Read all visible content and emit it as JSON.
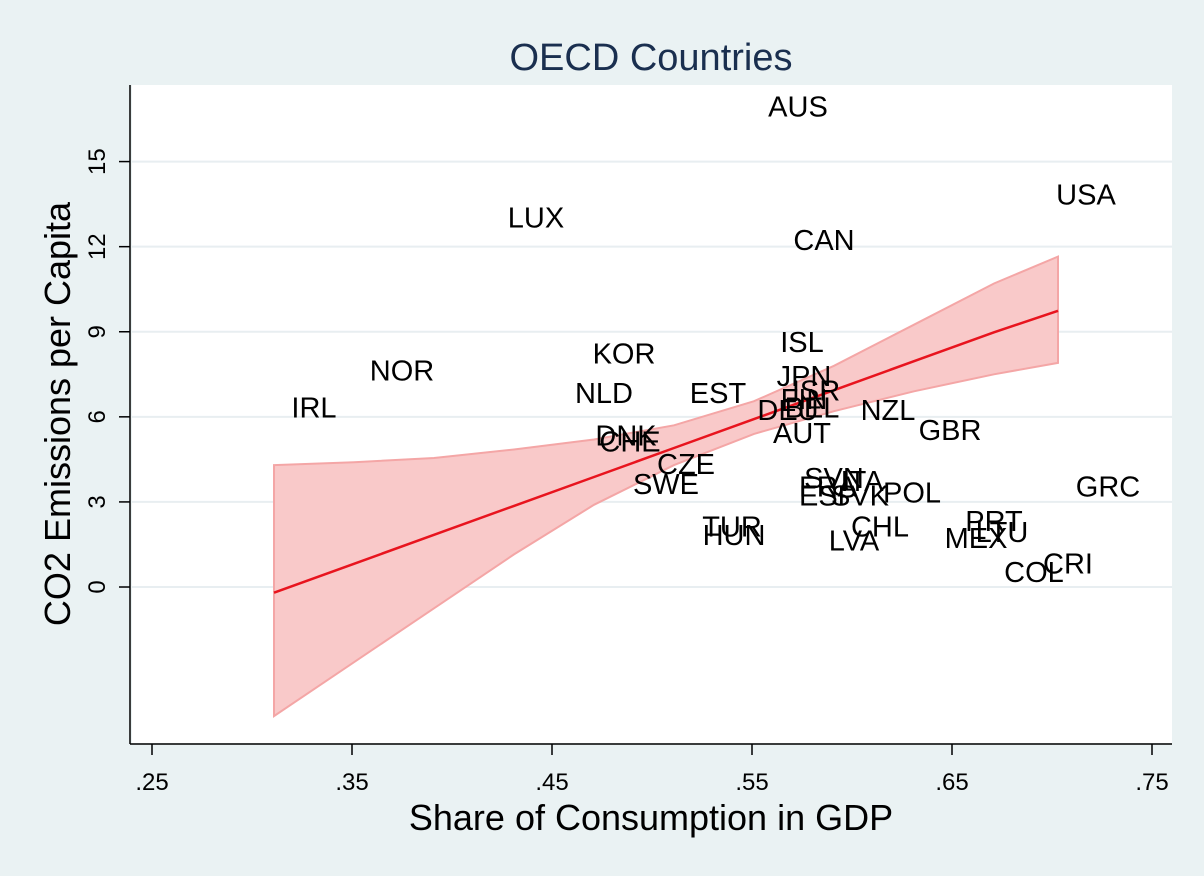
{
  "chart_data": {
    "type": "scatter",
    "title": "OECD Countries",
    "xlabel": "Share of Consumption in GDP",
    "ylabel": "CO2 Emissions per Capita",
    "xlim": [
      0.24,
      0.76
    ],
    "ylim": [
      -5.5,
      17.7
    ],
    "x_ticks": [
      {
        "value": 0.25,
        "label": ".25"
      },
      {
        "value": 0.35,
        "label": ".35"
      },
      {
        "value": 0.45,
        "label": ".45"
      },
      {
        "value": 0.55,
        "label": ".55"
      },
      {
        "value": 0.65,
        "label": ".65"
      },
      {
        "value": 0.75,
        "label": ".75"
      }
    ],
    "y_ticks": [
      {
        "value": 0,
        "label": "0"
      },
      {
        "value": 3,
        "label": "3"
      },
      {
        "value": 6,
        "label": "6"
      },
      {
        "value": 9,
        "label": "9"
      },
      {
        "value": 12,
        "label": "12"
      },
      {
        "value": 15,
        "label": "15"
      }
    ],
    "grid": true,
    "points": [
      {
        "label": "AUS",
        "x": 0.573,
        "y": 16.9
      },
      {
        "label": "USA",
        "x": 0.717,
        "y": 13.8
      },
      {
        "label": "LUX",
        "x": 0.442,
        "y": 13.0
      },
      {
        "label": "CAN",
        "x": 0.586,
        "y": 12.2
      },
      {
        "label": "ISL",
        "x": 0.575,
        "y": 8.6
      },
      {
        "label": "KOR",
        "x": 0.486,
        "y": 8.2
      },
      {
        "label": "NOR",
        "x": 0.375,
        "y": 7.6
      },
      {
        "label": "JPN",
        "x": 0.576,
        "y": 7.4
      },
      {
        "label": "NLD",
        "x": 0.476,
        "y": 6.8
      },
      {
        "label": "EST",
        "x": 0.533,
        "y": 6.8
      },
      {
        "label": "ISR",
        "x": 0.582,
        "y": 6.9
      },
      {
        "label": "BEL",
        "x": 0.58,
        "y": 6.3
      },
      {
        "label": "FIN",
        "x": 0.576,
        "y": 6.6
      },
      {
        "label": "DEU",
        "x": 0.568,
        "y": 6.2
      },
      {
        "label": "IRL",
        "x": 0.331,
        "y": 6.3
      },
      {
        "label": "NZL",
        "x": 0.618,
        "y": 6.2
      },
      {
        "label": "AUT",
        "x": 0.575,
        "y": 5.4
      },
      {
        "label": "GBR",
        "x": 0.649,
        "y": 5.5
      },
      {
        "label": "DNK",
        "x": 0.487,
        "y": 5.3
      },
      {
        "label": "CHE",
        "x": 0.489,
        "y": 5.1
      },
      {
        "label": "CZE",
        "x": 0.517,
        "y": 4.3
      },
      {
        "label": "SWE",
        "x": 0.507,
        "y": 3.6
      },
      {
        "label": "SVN",
        "x": 0.591,
        "y": 3.8
      },
      {
        "label": "ITA",
        "x": 0.605,
        "y": 3.7
      },
      {
        "label": "FRA",
        "x": 0.588,
        "y": 3.5
      },
      {
        "label": "POL",
        "x": 0.63,
        "y": 3.3
      },
      {
        "label": "ESP",
        "x": 0.588,
        "y": 3.2
      },
      {
        "label": "SVK",
        "x": 0.604,
        "y": 3.2
      },
      {
        "label": "GRC",
        "x": 0.728,
        "y": 3.5
      },
      {
        "label": "PRT",
        "x": 0.671,
        "y": 2.3
      },
      {
        "label": "TUR",
        "x": 0.54,
        "y": 2.1
      },
      {
        "label": "HUN",
        "x": 0.541,
        "y": 1.8
      },
      {
        "label": "CHL",
        "x": 0.614,
        "y": 2.1
      },
      {
        "label": "LTU",
        "x": 0.675,
        "y": 1.9
      },
      {
        "label": "MEX",
        "x": 0.662,
        "y": 1.7
      },
      {
        "label": "LVA",
        "x": 0.601,
        "y": 1.6
      },
      {
        "label": "CRI",
        "x": 0.708,
        "y": 0.8
      },
      {
        "label": "COL",
        "x": 0.691,
        "y": 0.5
      }
    ],
    "fit": {
      "x": [
        0.311,
        0.351,
        0.391,
        0.431,
        0.471,
        0.511,
        0.551,
        0.591,
        0.631,
        0.671,
        0.703
      ],
      "y": [
        -0.2,
        0.82,
        1.84,
        2.86,
        3.88,
        4.9,
        5.92,
        6.94,
        7.96,
        8.98,
        9.74
      ],
      "lower": [
        -4.55,
        -2.65,
        -0.75,
        1.15,
        2.9,
        4.3,
        5.4,
        6.2,
        6.9,
        7.5,
        7.9
      ],
      "upper": [
        4.3,
        4.4,
        4.55,
        4.85,
        5.2,
        5.7,
        6.55,
        7.8,
        9.25,
        10.7,
        11.65
      ]
    },
    "colors": {
      "fit_line": "#e8141e",
      "ci_band": "#f9c9c9",
      "ci_edge": "#f4a6a6",
      "grid": "#e8eef1",
      "plot_bg": "#ffffff",
      "outer_bg": "#eaf2f3",
      "title": "#1a2f4f"
    }
  }
}
